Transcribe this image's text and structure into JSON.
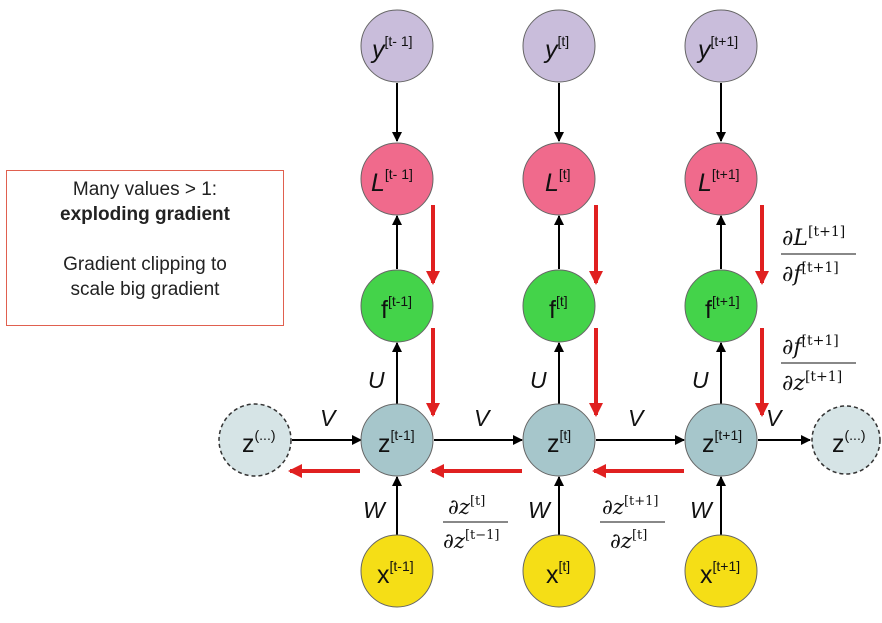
{
  "note": {
    "line1": "Many values > 1:",
    "line2": "exploding gradient",
    "line3": "Gradient clipping to",
    "line4": "scale big gradient"
  },
  "nodes": {
    "y": [
      {
        "base": "y",
        "sup": "[t- 1]"
      },
      {
        "base": "y",
        "sup": "[t]"
      },
      {
        "base": "y",
        "sup": "[t+1]"
      }
    ],
    "L": [
      {
        "base": "L",
        "sup": "[t- 1]"
      },
      {
        "base": "L",
        "sup": "[t]"
      },
      {
        "base": "L",
        "sup": "[t+1]"
      }
    ],
    "f": [
      {
        "base": "f",
        "sup": "[t-1]"
      },
      {
        "base": "f",
        "sup": "[t]"
      },
      {
        "base": "f",
        "sup": "[t+1]"
      }
    ],
    "z": [
      {
        "base": "z",
        "sup": "[t-1]"
      },
      {
        "base": "z",
        "sup": "[t]"
      },
      {
        "base": "z",
        "sup": "[t+1]"
      }
    ],
    "x": [
      {
        "base": "x",
        "sup": "[t-1]"
      },
      {
        "base": "x",
        "sup": "[t]"
      },
      {
        "base": "x",
        "sup": "[t+1]"
      }
    ],
    "z_left": {
      "base": "z",
      "sup": "(...)"
    },
    "z_right": {
      "base": "z",
      "sup": "(...)"
    }
  },
  "weights": {
    "U": "U",
    "V": "V",
    "W": "W"
  },
  "gradients": {
    "dL_df": {
      "num": "∂L",
      "num_sup": "[t+1]",
      "den": "∂f",
      "den_sup": "[t+1]"
    },
    "df_dz": {
      "num": "∂f",
      "num_sup": "[t+1]",
      "den": "∂z",
      "den_sup": "[t+1]"
    },
    "dz_dz_1": {
      "num": "∂z",
      "num_sup": "[t]",
      "den": "∂z",
      "den_sup": "[t−1]"
    },
    "dz_dz_2": {
      "num": "∂z",
      "num_sup": "[t+1]",
      "den": "∂z",
      "den_sup": "[t]"
    }
  },
  "colors": {
    "y": "#c9bddb",
    "L": "#f06a8c",
    "f": "#44d34a",
    "z": "#a6c6cb",
    "z_ghost": "#d6e4e6",
    "x": "#f5de16",
    "red_arrow": "#e02020",
    "note_border": "#e0604f"
  }
}
